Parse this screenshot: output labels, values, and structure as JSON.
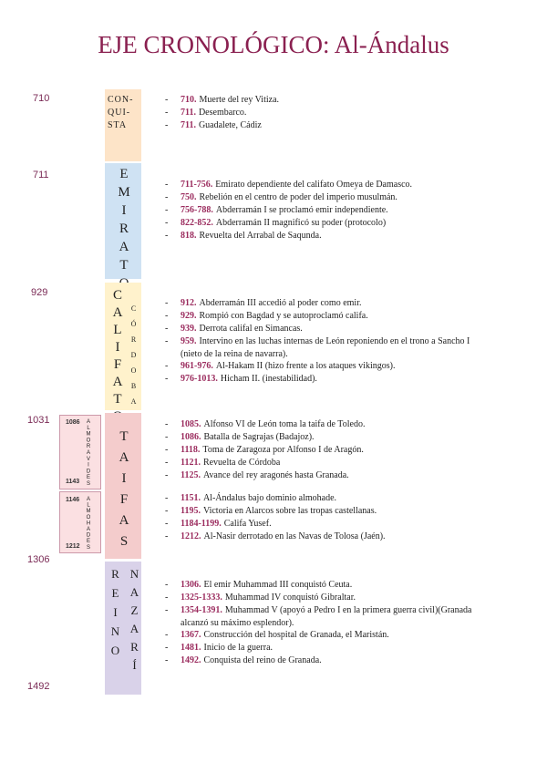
{
  "header": {
    "title": "EJE CRONOLÓGICO: Al-Ándalus"
  },
  "years": [
    "710",
    "711",
    "929",
    "1031",
    "1306",
    "1492"
  ],
  "periods": [
    {
      "lines": [
        "CON-",
        "QUI-",
        "STA"
      ]
    },
    {
      "label": "EMIRATO"
    },
    {
      "label": "CALIFATO",
      "sublabel": "CÓRDOBA"
    },
    {
      "label": "TAIFAS"
    },
    {
      "label": "REINO",
      "sublabel": "NAZARÍ"
    }
  ],
  "dynasties": [
    {
      "label": "ALMORAVIDES",
      "start": "1086",
      "end": "1143"
    },
    {
      "label": "ALMOHADES",
      "start": "1146",
      "end": "1212"
    }
  ],
  "event_groups": [
    [
      {
        "date": "710.",
        "text": "Muerte del rey Vitiza."
      },
      {
        "date": "711.",
        "text": "Desembarco."
      },
      {
        "date": "711.",
        "text": "Guadalete, Cádiz"
      }
    ],
    [
      {
        "date": "711-756.",
        "text": "Emirato dependiente del califato Omeya de Damasco."
      },
      {
        "date": "750.",
        "text": "Rebelión en el centro de poder del imperio musulmán."
      },
      {
        "date": "756-788.",
        "text": "Abderramán I se proclamó emir independiente."
      },
      {
        "date": "822-852.",
        "text": "Abderramán II magnificó su poder (protocolo)"
      },
      {
        "date": "818.",
        "text": "Revuelta del Arrabal de Saqunda."
      }
    ],
    [
      {
        "date": "912.",
        "text": "Abderramán III accedió al poder como emir."
      },
      {
        "date": "929.",
        "text": "Rompió con Bagdad y se autoproclamó califa."
      },
      {
        "date": "939.",
        "text": "Derrota califal en Simancas."
      },
      {
        "date": "959.",
        "text": "Intervino en las luchas internas de León reponiendo en el trono a Sancho I (nieto de la reina de navarra)."
      },
      {
        "date": "961-976.",
        "text": "Al-Hakam II (hizo frente a los ataques vikingos)."
      },
      {
        "date": "976-1013.",
        "text": "Hicham II. (inestabilidad)."
      }
    ],
    [
      {
        "date": "1085.",
        "text": "Alfonso VI de León toma la taifa de Toledo."
      },
      {
        "date": "1086.",
        "text": "Batalla de Sagrajas (Badajoz)."
      },
      {
        "date": "1118.",
        "text": "Toma de Zaragoza por Alfonso I de Aragón."
      },
      {
        "date": "1121.",
        "text": "Revuelta de Córdoba"
      },
      {
        "date": "1125.",
        "text": "Avance del rey aragonés hasta Granada."
      }
    ],
    [
      {
        "date": "1151.",
        "text": "Al-Ándalus bajo dominio almohade."
      },
      {
        "date": "1195.",
        "text": "Victoria en Alarcos sobre las tropas castellanas."
      },
      {
        "date": "1184-1199.",
        "text": "Califa Yusef."
      },
      {
        "date": "1212.",
        "text": "Al-Nasir derrotado en las Navas de Tolosa (Jaén)."
      }
    ],
    [
      {
        "date": "1306.",
        "text": "El emir Muhammad III conquistó Ceuta."
      },
      {
        "date": "1325-1333.",
        "text": "Muhammad IV conquistó Gibraltar."
      },
      {
        "date": "1354-1391.",
        "text": "Muhammad V (apoyó a Pedro I en la primera guerra civil)(Granada alcanzó su máximo esplendor)."
      },
      {
        "date": "1367.",
        "text": "Construcción del hospital de Granada, el Maristán."
      },
      {
        "date": "1481.",
        "text": "Inicio de la guerra."
      },
      {
        "date": "1492.",
        "text": "Conquista del reino de Granada."
      }
    ]
  ]
}
